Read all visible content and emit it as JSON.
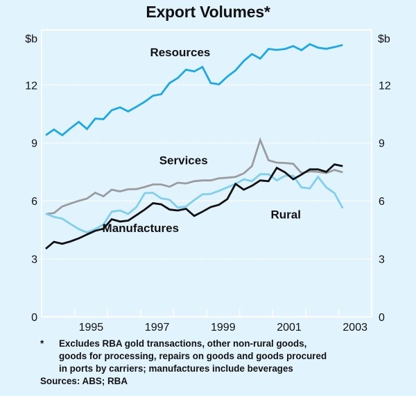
{
  "chart_data": {
    "type": "line",
    "title": "Export Volumes*",
    "xlabel": "",
    "ylabel": "$b",
    "ylabel_right": "$b",
    "ylim": [
      0,
      14.85
    ],
    "yticks": [
      0,
      3,
      6,
      9,
      12
    ],
    "ytick_labels": [
      "0",
      "3",
      "6",
      "9",
      "12"
    ],
    "xlim": [
      1994,
      2004
    ],
    "xtick_boundaries": [
      1995,
      1996,
      1997,
      1998,
      1999,
      2000,
      2001,
      2002,
      2003
    ],
    "xtick_labels": [
      {
        "label": "1995",
        "year": 1995
      },
      {
        "label": "1997",
        "year": 1997
      },
      {
        "label": "1999",
        "year": 1999
      },
      {
        "label": "2001",
        "year": 2001
      },
      {
        "label": "2003",
        "year": 2003
      }
    ],
    "grid": true,
    "frequency": "quarterly",
    "x_start": "1994 Q1",
    "x_end": "2003 Q1",
    "series": [
      {
        "name": "Resources",
        "color": "#1AA8E8",
        "values": [
          9.4,
          9.69,
          9.4,
          9.76,
          10.09,
          9.72,
          10.26,
          10.23,
          10.69,
          10.84,
          10.63,
          10.87,
          11.13,
          11.44,
          11.52,
          12.1,
          12.36,
          12.79,
          12.7,
          12.93,
          12.1,
          12.03,
          12.43,
          12.75,
          13.24,
          13.6,
          13.36,
          13.86,
          13.81,
          13.86,
          14.01,
          13.8,
          14.11,
          13.93,
          13.87,
          13.96,
          14.07
        ]
      },
      {
        "name": "Services",
        "color": "#9A9C9E",
        "values": [
          5.32,
          5.37,
          5.71,
          5.86,
          6.0,
          6.12,
          6.42,
          6.24,
          6.58,
          6.49,
          6.6,
          6.61,
          6.72,
          6.85,
          6.85,
          6.73,
          6.94,
          6.9,
          7.02,
          7.06,
          7.06,
          7.17,
          7.2,
          7.24,
          7.42,
          7.8,
          9.15,
          8.1,
          7.98,
          7.96,
          7.92,
          7.44,
          7.53,
          7.5,
          7.44,
          7.6,
          7.48
        ]
      },
      {
        "name": "Rural",
        "color": "#7ECFF1",
        "values": [
          5.34,
          5.17,
          5.08,
          4.8,
          4.54,
          4.36,
          4.54,
          4.78,
          5.44,
          5.5,
          5.32,
          5.68,
          6.4,
          6.42,
          6.13,
          6.06,
          5.65,
          5.71,
          6.04,
          6.34,
          6.36,
          6.52,
          6.7,
          6.88,
          7.12,
          7.02,
          7.38,
          7.38,
          7.06,
          7.3,
          7.3,
          6.7,
          6.64,
          7.24,
          6.7,
          6.4,
          5.62
        ]
      },
      {
        "name": "Manufactures",
        "color": "#111111",
        "values": [
          3.52,
          3.88,
          3.78,
          3.9,
          4.06,
          4.26,
          4.45,
          4.56,
          5.05,
          4.93,
          4.98,
          5.26,
          5.55,
          5.88,
          5.82,
          5.55,
          5.5,
          5.59,
          5.22,
          5.44,
          5.68,
          5.8,
          6.09,
          6.88,
          6.58,
          6.78,
          7.06,
          7.02,
          7.71,
          7.48,
          7.12,
          7.36,
          7.63,
          7.63,
          7.5,
          7.89,
          7.8
        ]
      }
    ],
    "annotations": [
      {
        "text": "Resources",
        "series": "Resources",
        "year": 1998.2,
        "value": 13.7
      },
      {
        "text": "Services",
        "series": "Services",
        "year": 1998.3,
        "value": 8.1
      },
      {
        "text": "Manufactures",
        "series": "Manufactures",
        "year": 1997.0,
        "value": 4.6
      },
      {
        "text": "Rural",
        "series": "Rural",
        "year": 2001.4,
        "value": 5.3
      }
    ]
  },
  "footnote": {
    "marker": "*",
    "lines": [
      "Excludes RBA gold transactions, other non-rural goods,",
      "goods for processing, repairs on goods and goods procured",
      "in ports by carriers; manufactures include beverages"
    ],
    "sources": "Sources: ABS; RBA"
  },
  "colors": {
    "background": "#E1F3FC",
    "grid": "#FFFFFF"
  }
}
